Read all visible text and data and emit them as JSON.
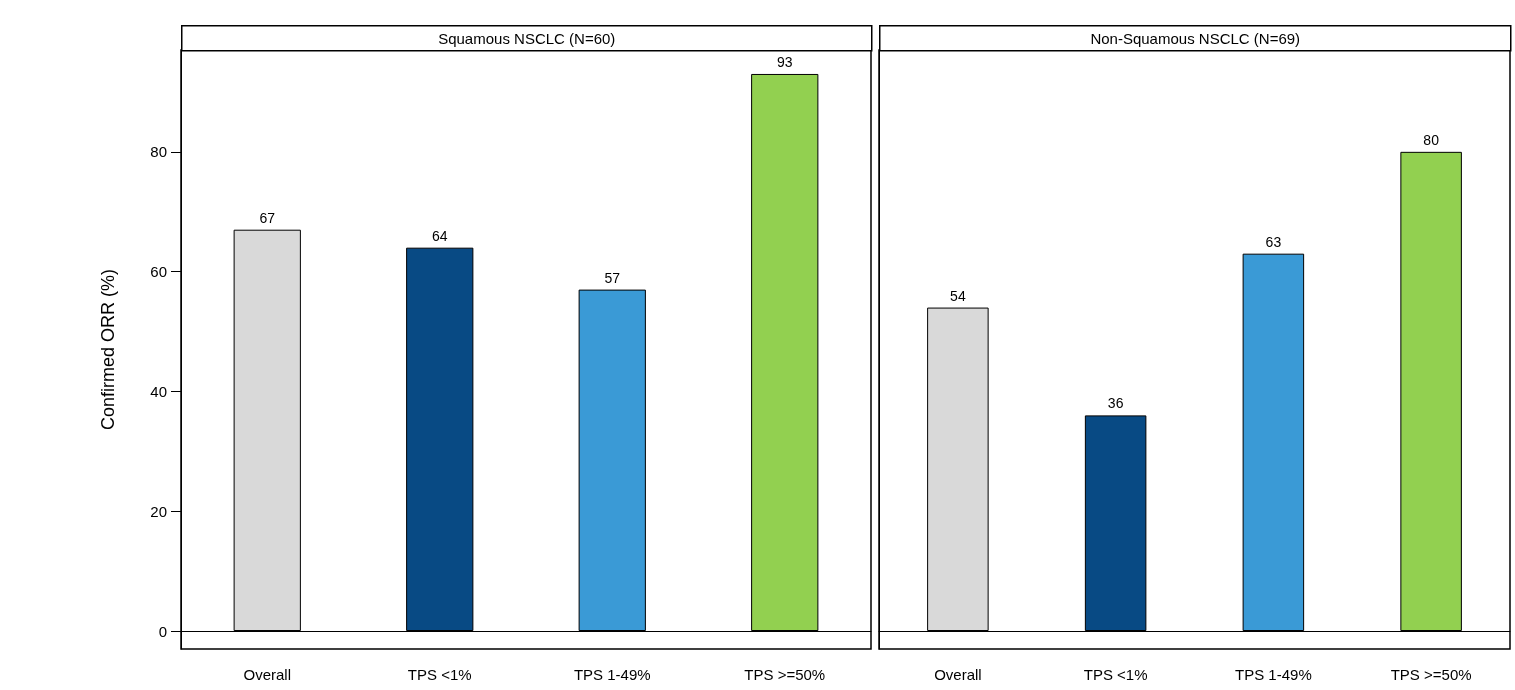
{
  "chart_data": [
    {
      "type": "bar",
      "title": "Squamous NSCLC (N=60)",
      "ylabel": "Confirmed ORR (%)",
      "categories": [
        "Overall",
        "TPS <1%",
        "TPS 1-49%",
        "TPS >=50%"
      ],
      "values": [
        67,
        64,
        57,
        93
      ],
      "colors": [
        "#d9d9d9",
        "#084a84",
        "#3a9ad6",
        "#92d050"
      ],
      "data_labels": true,
      "ylim": [
        -3,
        97
      ],
      "yticks": [
        0,
        20,
        40,
        60,
        80
      ],
      "ref_lines": [
        {
          "axis": "y",
          "value": 0,
          "color": "#000000"
        }
      ],
      "grid": false
    },
    {
      "type": "bar",
      "title": "Non-Squamous NSCLC (N=69)",
      "categories": [
        "Overall",
        "TPS <1%",
        "TPS 1-49%",
        "TPS >=50%"
      ],
      "values": [
        54,
        36,
        63,
        80
      ],
      "colors": [
        "#d9d9d9",
        "#084a84",
        "#3a9ad6",
        "#92d050"
      ],
      "data_labels": true,
      "ylim": [
        -3,
        97
      ],
      "yticks": [
        0,
        20,
        40,
        60,
        80
      ],
      "ref_lines": [
        {
          "axis": "y",
          "value": 0,
          "color": "#000000"
        }
      ],
      "grid": false,
      "tick_labels": "x"
    }
  ]
}
